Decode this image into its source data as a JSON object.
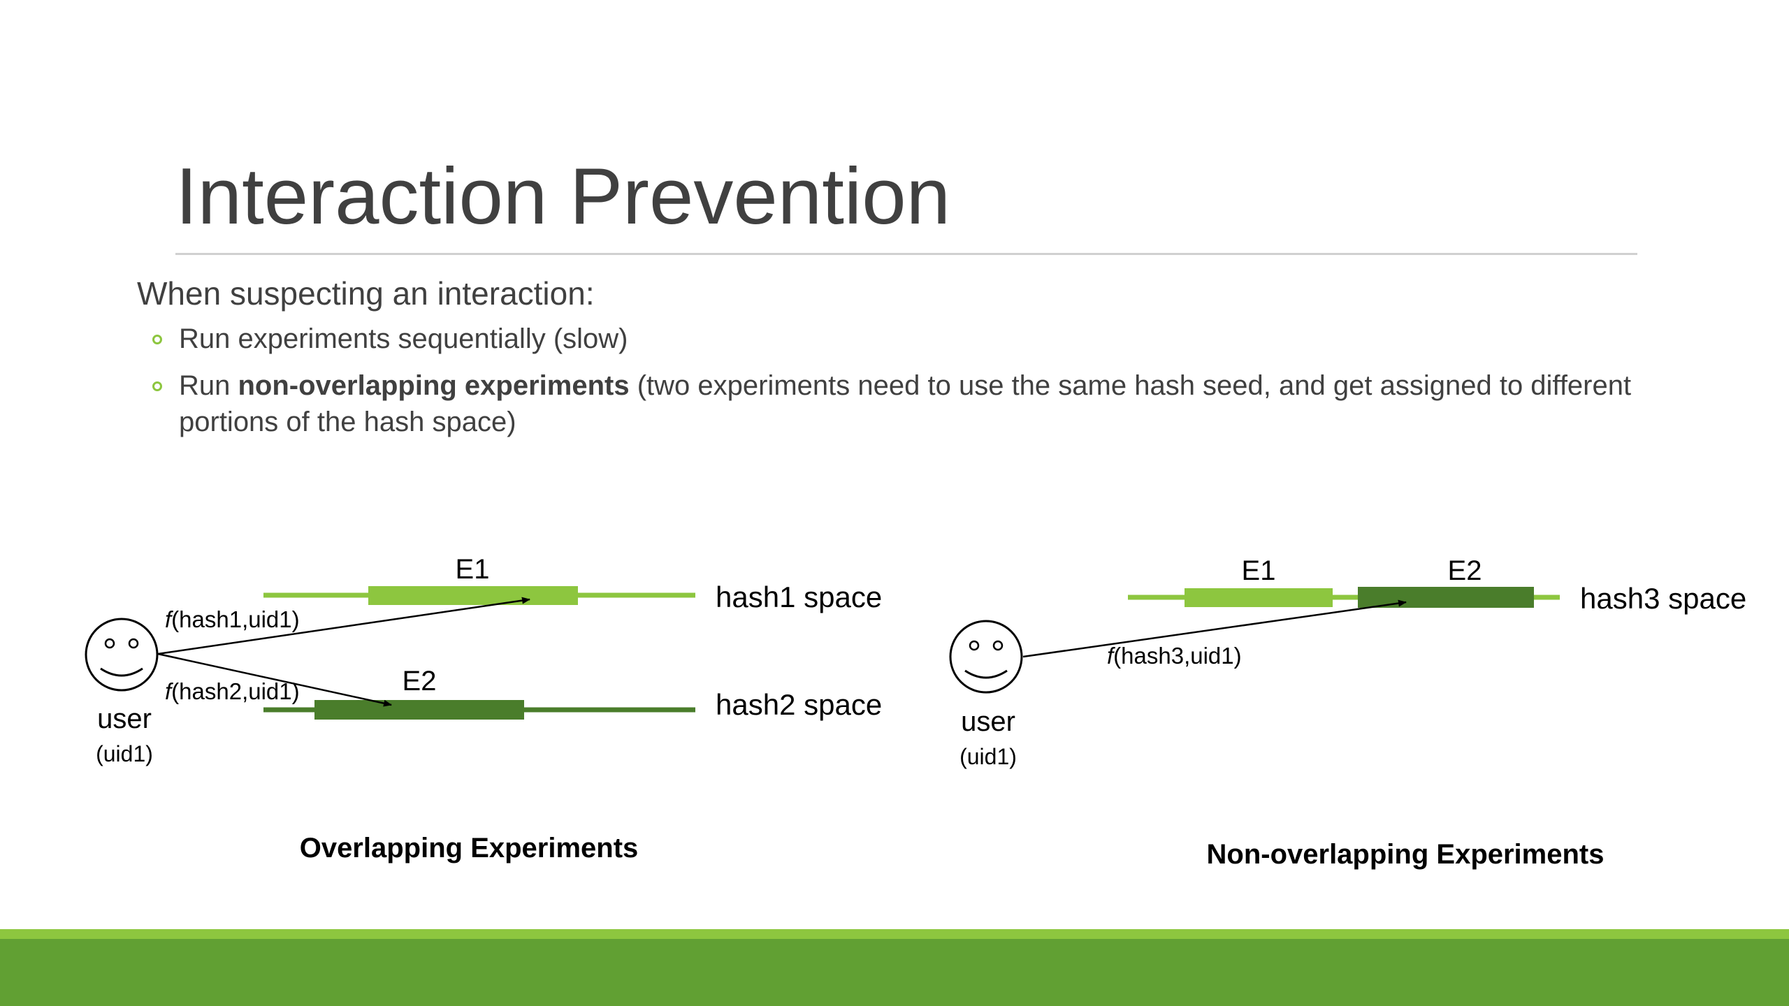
{
  "slide": {
    "title": "Interaction Prevention",
    "lead": "When suspecting an interaction:",
    "bullets": [
      {
        "text": "Run experiments sequentially (slow)"
      },
      {
        "prefix": "Run ",
        "bold": "non-overlapping experiments",
        "suffix": " (two experiments need to use the same hash seed, and get assigned to different portions of the hash space)"
      }
    ]
  },
  "colors": {
    "light_green": "#8dc63f",
    "dark_green": "#4a7d2b",
    "footer_dark": "#61a033",
    "text": "#404040"
  },
  "diagrams": {
    "overlapping": {
      "caption": "Overlapping Experiments",
      "user_label": "user",
      "user_id": "(uid1)",
      "hash_spaces": [
        {
          "label": "hash1 space",
          "experiment": "E1",
          "function_label": "(hash1,uid1)"
        },
        {
          "label": "hash2 space",
          "experiment": "E2",
          "function_label": "(hash2,uid1)"
        }
      ]
    },
    "non_overlapping": {
      "caption": "Non-overlapping Experiments",
      "user_label": "user",
      "user_id": "(uid1)",
      "hash_space": {
        "label": "hash3 space",
        "function_label": "(hash3,uid1)"
      },
      "experiments": [
        "E1",
        "E2"
      ]
    },
    "function_symbol": "f"
  }
}
